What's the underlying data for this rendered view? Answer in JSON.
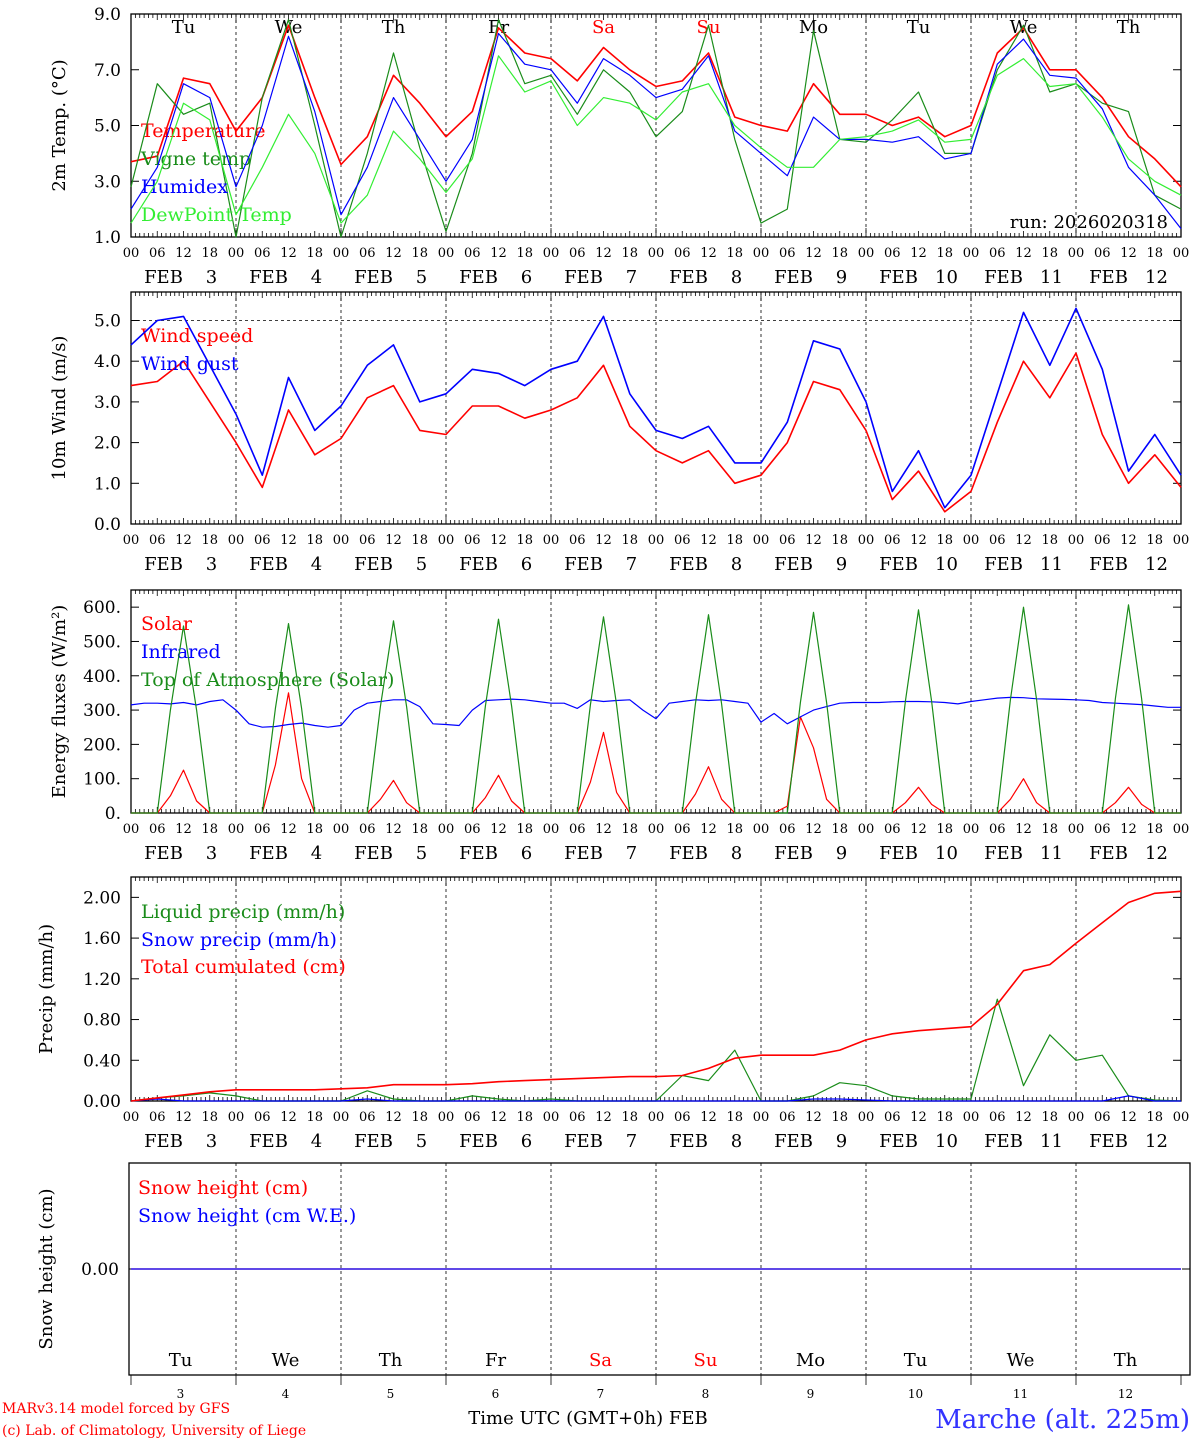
{
  "days": {
    "names": [
      "Tu",
      "We",
      "Th",
      "Fr",
      "Sa",
      "Su",
      "Mo",
      "Tu",
      "We",
      "Th"
    ],
    "weekend": [
      false,
      false,
      false,
      false,
      true,
      true,
      false,
      false,
      false,
      false
    ],
    "dates": [
      "3",
      "4",
      "5",
      "6",
      "7",
      "8",
      "9",
      "10",
      "11",
      "12"
    ],
    "month": "FEB",
    "hour_labels": [
      "00",
      "06",
      "12",
      "18"
    ],
    "weekday_color": "#000000",
    "weekend_color": "#ff0000"
  },
  "footer": {
    "model": "MARv3.14 model forced by GFS",
    "credit": "(c) Lab. of Climatology, University of Liege",
    "xlabel": "Time UTC (GMT+0h) FEB",
    "station": "Marche (alt. 225m)"
  },
  "chart_data": [
    {
      "type": "line",
      "ylabel": "2m Temp. (°C)",
      "ylim": [
        1,
        9
      ],
      "yticks": [
        1,
        3,
        5,
        7,
        9
      ],
      "ytick_labels": [
        "1.0",
        "3.0",
        "5.0",
        "7.0",
        "9.0"
      ],
      "x_start": "2026-02-03 00 UTC",
      "step_hours": 6,
      "annotation": "run: 2026020318",
      "series": [
        {
          "name": "Temperature",
          "color": "#ff0000",
          "values": [
            3.7,
            3.9,
            6.7,
            6.5,
            4.8,
            6.0,
            8.6,
            6.0,
            3.6,
            4.6,
            6.8,
            5.8,
            4.6,
            5.5,
            8.5,
            7.6,
            7.4,
            6.6,
            7.8,
            7.0,
            6.4,
            6.6,
            7.6,
            5.3,
            5.0,
            4.8,
            6.5,
            5.4,
            5.4,
            5.0,
            5.3,
            4.6,
            5.0,
            7.6,
            8.5,
            7.0,
            7.0,
            6.0,
            4.6,
            3.8,
            2.8
          ]
        },
        {
          "name": "Vigne temp",
          "color": "#1a8c1a",
          "values": [
            2.8,
            6.5,
            5.4,
            5.8,
            1.0,
            6.0,
            8.8,
            5.0,
            1.0,
            4.0,
            7.6,
            4.2,
            1.2,
            4.0,
            8.8,
            6.5,
            6.8,
            5.4,
            7.0,
            6.2,
            4.6,
            5.5,
            8.6,
            4.5,
            1.5,
            2.0,
            8.4,
            4.5,
            4.4,
            5.2,
            6.2,
            4.0,
            4.0,
            7.0,
            8.6,
            6.2,
            6.5,
            5.8,
            5.5,
            2.5,
            2.0
          ]
        },
        {
          "name": "Humidex",
          "color": "#0000ff",
          "values": [
            2.0,
            3.5,
            6.5,
            6.0,
            2.8,
            5.0,
            8.2,
            5.5,
            1.8,
            3.5,
            6.0,
            4.5,
            3.0,
            4.5,
            8.3,
            7.2,
            7.0,
            5.8,
            7.4,
            6.8,
            6.0,
            6.3,
            7.5,
            4.8,
            4.0,
            3.2,
            5.3,
            4.5,
            4.5,
            4.4,
            4.6,
            3.8,
            4.0,
            7.2,
            8.1,
            6.8,
            6.7,
            5.6,
            3.5,
            2.5,
            1.3
          ]
        },
        {
          "name": "DewPoint Temp",
          "color": "#33ee33",
          "values": [
            1.5,
            3.0,
            5.8,
            5.2,
            1.8,
            3.5,
            5.4,
            4.0,
            1.5,
            2.5,
            4.8,
            3.8,
            2.6,
            3.8,
            7.5,
            6.2,
            6.6,
            5.0,
            6.0,
            5.8,
            5.2,
            6.2,
            6.5,
            5.0,
            4.2,
            3.5,
            3.5,
            4.5,
            4.6,
            4.8,
            5.2,
            4.4,
            4.5,
            6.8,
            7.4,
            6.4,
            6.5,
            5.3,
            3.8,
            3.0,
            2.5
          ]
        }
      ]
    },
    {
      "type": "line",
      "ylabel": "10m Wind (m/s)",
      "ylim": [
        0,
        5.7
      ],
      "yticks": [
        0,
        1,
        2,
        3,
        4,
        5
      ],
      "ytick_labels": [
        "0.0",
        "1.0",
        "2.0",
        "3.0",
        "4.0",
        "5.0"
      ],
      "reference_line": 5.0,
      "step_hours": 6,
      "series": [
        {
          "name": "Wind speed",
          "color": "#ff0000",
          "values": [
            3.4,
            3.5,
            4.0,
            3.0,
            2.0,
            0.9,
            2.8,
            1.7,
            2.1,
            3.1,
            3.4,
            2.3,
            2.2,
            2.9,
            2.9,
            2.6,
            2.8,
            3.1,
            3.9,
            2.4,
            1.8,
            1.5,
            1.8,
            1.0,
            1.2,
            2.0,
            3.5,
            3.3,
            2.3,
            0.6,
            1.3,
            0.3,
            0.8,
            2.5,
            4.0,
            3.1,
            4.2,
            2.2,
            1.0,
            1.7,
            0.9
          ]
        },
        {
          "name": "Wind gust",
          "color": "#0000ff",
          "values": [
            4.4,
            5.0,
            5.1,
            3.9,
            2.7,
            1.2,
            3.6,
            2.3,
            2.9,
            3.9,
            4.4,
            3.0,
            3.2,
            3.8,
            3.7,
            3.4,
            3.8,
            4.0,
            5.1,
            3.2,
            2.3,
            2.1,
            2.4,
            1.5,
            1.5,
            2.5,
            4.5,
            4.3,
            3.0,
            0.8,
            1.8,
            0.4,
            1.2,
            3.2,
            5.2,
            3.9,
            5.3,
            3.8,
            1.3,
            2.2,
            1.2
          ]
        }
      ]
    },
    {
      "type": "line",
      "ylabel": "Energy fluxes (W/m²)",
      "ylim": [
        0,
        650
      ],
      "yticks": [
        0,
        100,
        200,
        300,
        400,
        500,
        600
      ],
      "ytick_labels": [
        "0.",
        "100.",
        "200.",
        "300.",
        "400.",
        "500.",
        "600."
      ],
      "step_hours": 3,
      "series": [
        {
          "name": "Solar",
          "color": "#ff0000",
          "values": [
            0,
            0,
            0,
            50,
            125,
            35,
            0,
            0,
            0,
            0,
            0,
            140,
            350,
            100,
            0,
            0,
            0,
            0,
            0,
            40,
            95,
            30,
            0,
            0,
            0,
            0,
            0,
            45,
            110,
            35,
            0,
            0,
            0,
            0,
            0,
            90,
            235,
            60,
            0,
            0,
            0,
            0,
            0,
            55,
            135,
            40,
            0,
            0,
            0,
            0,
            20,
            280,
            190,
            40,
            0,
            0,
            0,
            0,
            0,
            30,
            75,
            25,
            0,
            0,
            0,
            0,
            0,
            40,
            100,
            30,
            0,
            0,
            0,
            0,
            0,
            30,
            75,
            25,
            0,
            0,
            0
          ]
        },
        {
          "name": "Infrared",
          "color": "#0000ff",
          "values": [
            315,
            320,
            320,
            318,
            322,
            315,
            325,
            330,
            300,
            260,
            250,
            252,
            258,
            262,
            255,
            250,
            255,
            300,
            320,
            325,
            330,
            330,
            310,
            260,
            258,
            255,
            300,
            328,
            330,
            332,
            330,
            325,
            320,
            320,
            305,
            330,
            325,
            328,
            330,
            300,
            275,
            320,
            325,
            330,
            328,
            330,
            325,
            320,
            265,
            290,
            260,
            280,
            300,
            310,
            320,
            322,
            322,
            322,
            324,
            325,
            325,
            324,
            322,
            318,
            325,
            330,
            335,
            337,
            336,
            333,
            332,
            331,
            330,
            328,
            322,
            320,
            318,
            316,
            312,
            308,
            308
          ]
        },
        {
          "name": "Top of Atmosphere (Solar)",
          "color": "#1a8c1a",
          "values": [
            0,
            0,
            0,
            300,
            545,
            300,
            0,
            0,
            0,
            0,
            0,
            305,
            552,
            305,
            0,
            0,
            0,
            0,
            0,
            310,
            560,
            310,
            0,
            0,
            0,
            0,
            0,
            312,
            565,
            312,
            0,
            0,
            0,
            0,
            0,
            315,
            572,
            315,
            0,
            0,
            0,
            0,
            0,
            318,
            578,
            318,
            0,
            0,
            0,
            0,
            0,
            322,
            585,
            322,
            0,
            0,
            0,
            0,
            0,
            326,
            592,
            326,
            0,
            0,
            0,
            0,
            0,
            330,
            600,
            330,
            0,
            0,
            0,
            0,
            0,
            334,
            607,
            334,
            0,
            0,
            0
          ]
        }
      ]
    },
    {
      "type": "line",
      "ylabel": "Precip (mm/h)",
      "ylim": [
        0,
        2.2
      ],
      "yticks": [
        0,
        0.4,
        0.8,
        1.2,
        1.6,
        2.0
      ],
      "ytick_labels": [
        "0.00",
        "0.40",
        "0.80",
        "1.20",
        "1.60",
        "2.00"
      ],
      "step_hours": 6,
      "series": [
        {
          "name": "Liquid precip (mm/h)",
          "color": "#1a8c1a",
          "values": [
            0,
            0.03,
            0.05,
            0.08,
            0.05,
            0,
            0,
            0,
            0,
            0.1,
            0.02,
            0,
            0,
            0.05,
            0.02,
            0,
            0.02,
            0,
            0,
            0,
            0,
            0.25,
            0.2,
            0.5,
            0,
            0,
            0.05,
            0.18,
            0.15,
            0.05,
            0.02,
            0.02,
            0.02,
            1.0,
            0.15,
            0.65,
            0.4,
            0.45,
            0.05,
            0.01,
            0
          ]
        },
        {
          "name": "Snow precip (mm/h)",
          "color": "#0000ff",
          "values": [
            0,
            0.02,
            0,
            0,
            0,
            0,
            0,
            0,
            0,
            0.02,
            0,
            0,
            0,
            0,
            0,
            0,
            0,
            0,
            0,
            0,
            0,
            0,
            0,
            0,
            0,
            0,
            0.02,
            0.02,
            0.01,
            0,
            0,
            0,
            0,
            0,
            0,
            0,
            0,
            0,
            0.05,
            0,
            0
          ]
        },
        {
          "name": "Total cumulated (cm)",
          "color": "#ff0000",
          "values": [
            0,
            0.03,
            0.06,
            0.09,
            0.11,
            0.11,
            0.11,
            0.11,
            0.12,
            0.13,
            0.16,
            0.16,
            0.16,
            0.17,
            0.19,
            0.2,
            0.21,
            0.22,
            0.23,
            0.24,
            0.24,
            0.25,
            0.32,
            0.42,
            0.45,
            0.45,
            0.45,
            0.5,
            0.6,
            0.66,
            0.69,
            0.71,
            0.73,
            0.95,
            1.28,
            1.34,
            1.55,
            1.75,
            1.95,
            2.04,
            2.06
          ]
        }
      ]
    },
    {
      "type": "line",
      "ylabel": "Snow height (cm)",
      "ylim": [
        -1,
        1
      ],
      "yticks": [
        0
      ],
      "ytick_labels": [
        "0.00"
      ],
      "step_hours": 6,
      "series": [
        {
          "name": "Snow height (cm)",
          "color": "#ff0000",
          "values": [
            0,
            0,
            0,
            0,
            0,
            0,
            0,
            0,
            0,
            0,
            0,
            0,
            0,
            0,
            0,
            0,
            0,
            0,
            0,
            0,
            0,
            0,
            0,
            0,
            0,
            0,
            0,
            0,
            0,
            0,
            0,
            0,
            0,
            0,
            0,
            0,
            0,
            0,
            0,
            0,
            0
          ]
        },
        {
          "name": "Snow height (cm W.E.)",
          "color": "#0000ff",
          "values": [
            0,
            0,
            0,
            0,
            0,
            0,
            0,
            0,
            0,
            0,
            0,
            0,
            0,
            0,
            0,
            0,
            0,
            0,
            0,
            0,
            0,
            0,
            0,
            0,
            0,
            0,
            0,
            0,
            0,
            0,
            0,
            0,
            0,
            0,
            0,
            0,
            0,
            0,
            0,
            0,
            0
          ]
        }
      ]
    }
  ]
}
